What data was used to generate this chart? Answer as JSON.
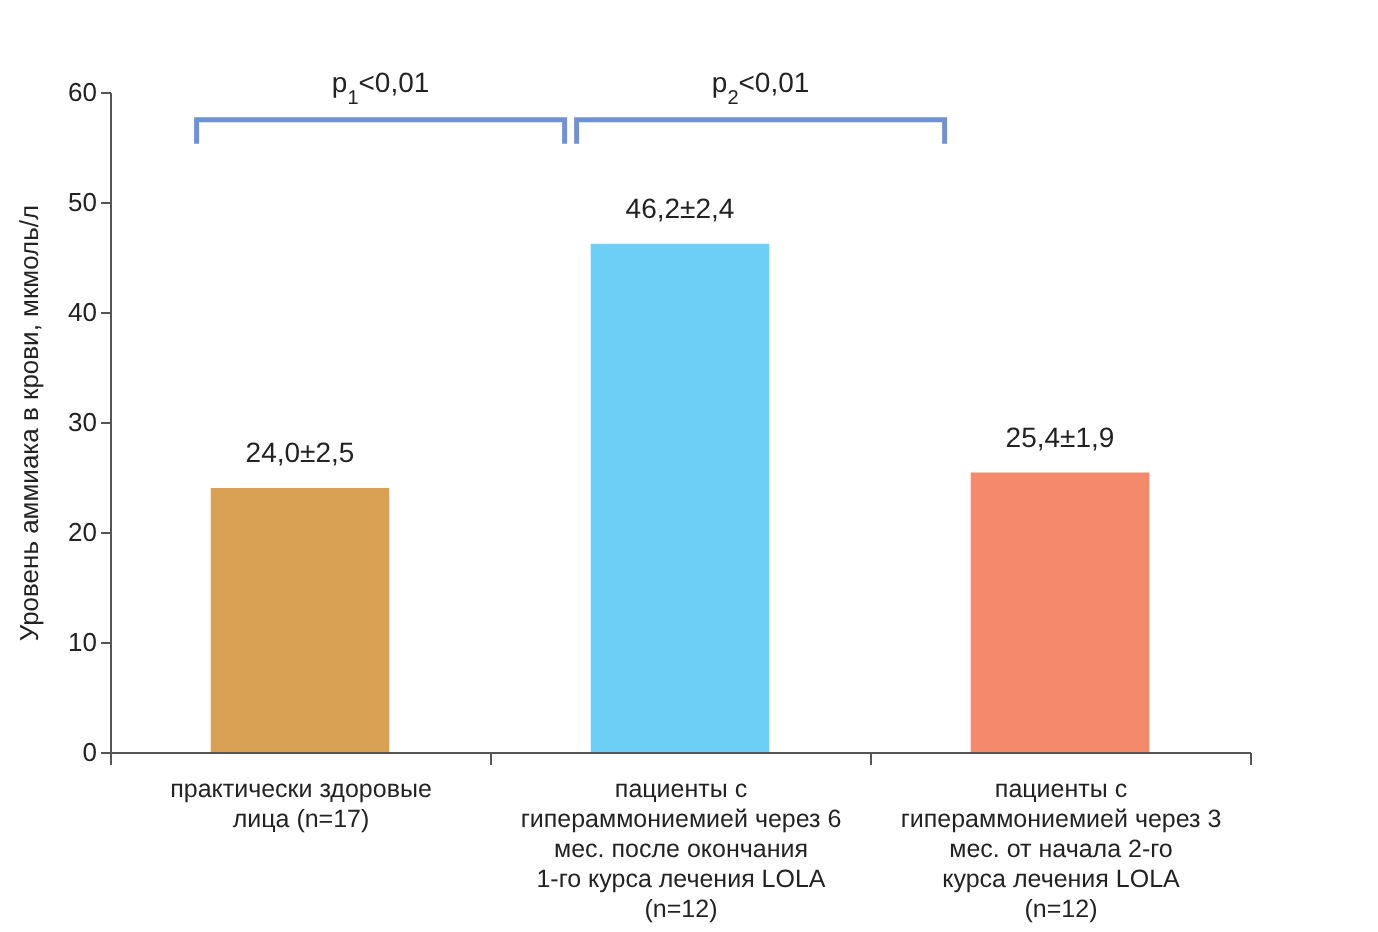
{
  "chart_data": {
    "type": "bar",
    "categories": [
      "практически здоровые лица (n=17)",
      "пациенты с гипераммониемией через 6 мес. после окончания 1-го курса лечения LOLA (n=12)",
      "пациенты с гипераммониемией через 3 мес. от начала 2-го курса лечения LOLA (n=12)"
    ],
    "values": [
      24.0,
      46.2,
      25.4
    ],
    "colors": [
      "#d9a154",
      "#6dcff6",
      "#f4896b"
    ],
    "value_labels": [
      "24,0±2,5",
      "46,2±2,4",
      "25,4±1,9"
    ],
    "ylabel": "Уровень аммиака в крови, мкмоль/л",
    "ylim": [
      0,
      60
    ],
    "yticks": [
      0,
      10,
      20,
      30,
      40,
      50,
      60
    ],
    "annotations": [
      "p$_{1}$<0,01",
      "p$_{2}$<0,01"
    ],
    "grid": false
  }
}
